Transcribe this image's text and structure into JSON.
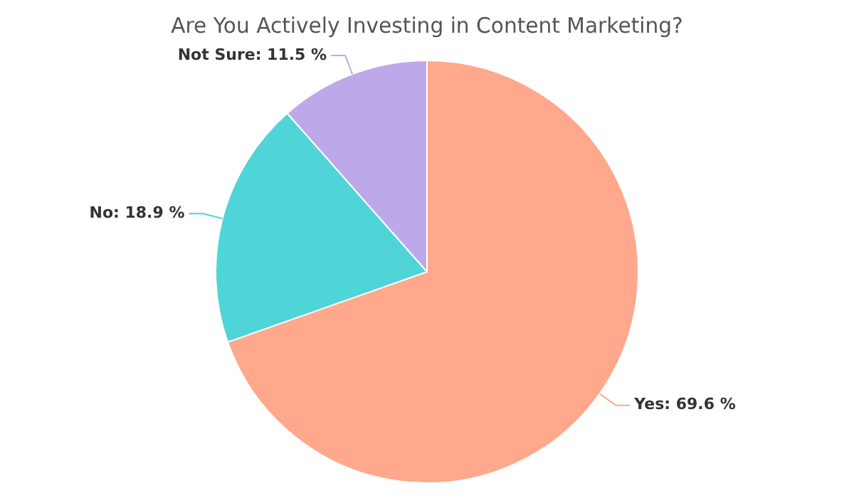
{
  "chart_data": {
    "type": "pie",
    "title": "Are You Actively Investing in Content Marketing?",
    "categories": [
      "Yes",
      "No",
      "Not Sure"
    ],
    "values": [
      69.6,
      18.9,
      11.5
    ],
    "colors": [
      "#ffa88c",
      "#4fd4d8",
      "#bda9ea"
    ],
    "value_labels": [
      "69.6 %",
      "18.9 %",
      "11.5 %"
    ]
  }
}
